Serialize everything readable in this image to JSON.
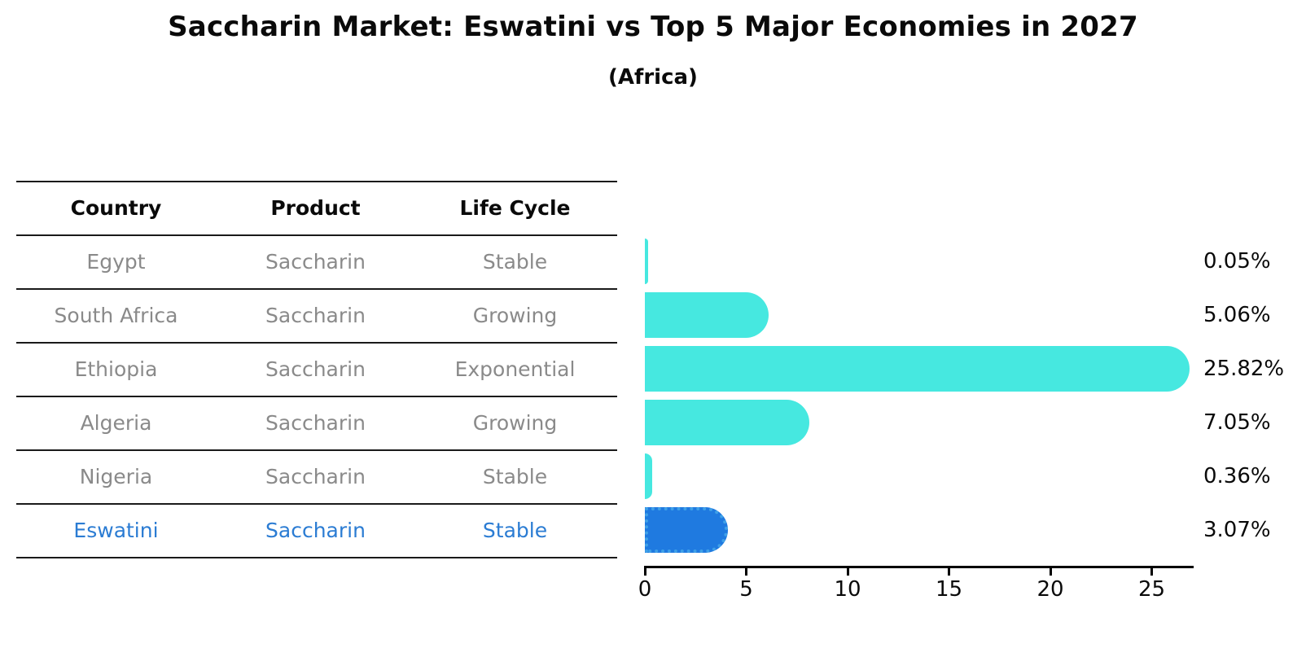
{
  "title": "Saccharin Market: Eswatini vs Top 5 Major Economies in 2027",
  "subtitle": "(Africa)",
  "table": {
    "headers": [
      "Country",
      "Product",
      "Life Cycle"
    ],
    "rows": [
      {
        "country": "Egypt",
        "product": "Saccharin",
        "life_cycle": "Stable",
        "highlight": false
      },
      {
        "country": "South Africa",
        "product": "Saccharin",
        "life_cycle": "Growing",
        "highlight": false
      },
      {
        "country": "Ethiopia",
        "product": "Saccharin",
        "life_cycle": "Exponential",
        "highlight": false
      },
      {
        "country": "Algeria",
        "product": "Saccharin",
        "life_cycle": "Growing",
        "highlight": false
      },
      {
        "country": "Nigeria",
        "product": "Saccharin",
        "life_cycle": "Stable",
        "highlight": false
      },
      {
        "country": "Eswatini",
        "product": "Saccharin",
        "life_cycle": "Stable",
        "highlight": true
      }
    ]
  },
  "chart_data": {
    "type": "bar",
    "orientation": "horizontal",
    "title": "Saccharin Market: Eswatini vs Top 5 Major Economies in 2027",
    "subtitle": "(Africa)",
    "categories": [
      "Egypt",
      "South Africa",
      "Ethiopia",
      "Algeria",
      "Nigeria",
      "Eswatini"
    ],
    "values": [
      0.05,
      5.06,
      25.82,
      7.05,
      0.36,
      3.07
    ],
    "value_labels": [
      "0.05%",
      "5.06%",
      "25.82%",
      "7.05%",
      "0.36%",
      "3.07%"
    ],
    "unit": "%",
    "x_ticks": [
      0,
      5,
      10,
      15,
      20,
      25
    ],
    "xlim": [
      0,
      27
    ],
    "grid": false,
    "legend": "none",
    "highlight_index": 5
  },
  "colors": {
    "bar_default": "#46E8E0",
    "bar_highlight": "#1F7AE0",
    "bar_highlight_border": "#3FA0E8",
    "row_text": "#8A8A8A",
    "highlight_text": "#2B7CD3",
    "axis": "#000000",
    "title_text": "#0A0A0A"
  }
}
